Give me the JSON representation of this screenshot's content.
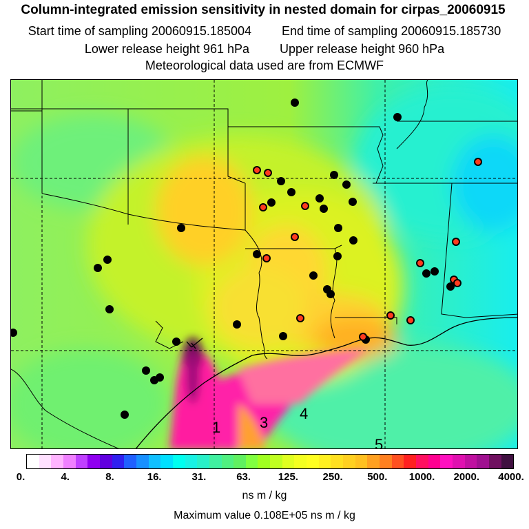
{
  "header": {
    "title": "Column-integrated emission sensitivity in nested domain for cirpas_20060915",
    "start_label": "Start time of sampling 20060915.185004",
    "end_label": "End time of sampling 20060915.185730",
    "lower_label": "Lower release height  961 hPa",
    "upper_label": "Upper release height  960 hPa",
    "met_label": "Meteorological data used are from ECMWF"
  },
  "map": {
    "plume_labels": [
      "1",
      "3",
      "4",
      "5"
    ],
    "colors": {
      "low_green": "#5ef08c",
      "mid_yellowgreen": "#b6f23c",
      "high_orange": "#ffc21a",
      "plume_magenta": "#ff1a9c",
      "core_purple": "#4a0a3a",
      "cyan": "#18f2e4",
      "station_black": "#000000",
      "station_red": "#ff3b1e"
    }
  },
  "colorbar": {
    "tick_labels": [
      "0.",
      "4.",
      "8.",
      "16.",
      "31.",
      "63.",
      "125.",
      "250.",
      "500.",
      "1000.",
      "2000.",
      "4000."
    ],
    "colors": [
      "#ffffff",
      "#ffe0ff",
      "#ffb4ff",
      "#f080ff",
      "#c040ff",
      "#9000f0",
      "#6000e0",
      "#3020f0",
      "#2060ff",
      "#1890ff",
      "#10c0ff",
      "#00e0ff",
      "#00fff0",
      "#18f2e4",
      "#28f0c8",
      "#40f0a0",
      "#50f080",
      "#60f060",
      "#80ff40",
      "#a0ff20",
      "#c0ff20",
      "#e0ff20",
      "#f4ff20",
      "#ffff20",
      "#fff020",
      "#ffe020",
      "#ffd020",
      "#ffc020",
      "#ffa020",
      "#ff8020",
      "#ff5020",
      "#ff2020",
      "#ff1060",
      "#ff0090",
      "#ff10c0",
      "#e010b0",
      "#c010a0",
      "#a01090",
      "#701060",
      "#401040"
    ],
    "unit_label": "ns m / kg",
    "max_label": "Maximum value  0.108E+05 ns m / kg"
  }
}
